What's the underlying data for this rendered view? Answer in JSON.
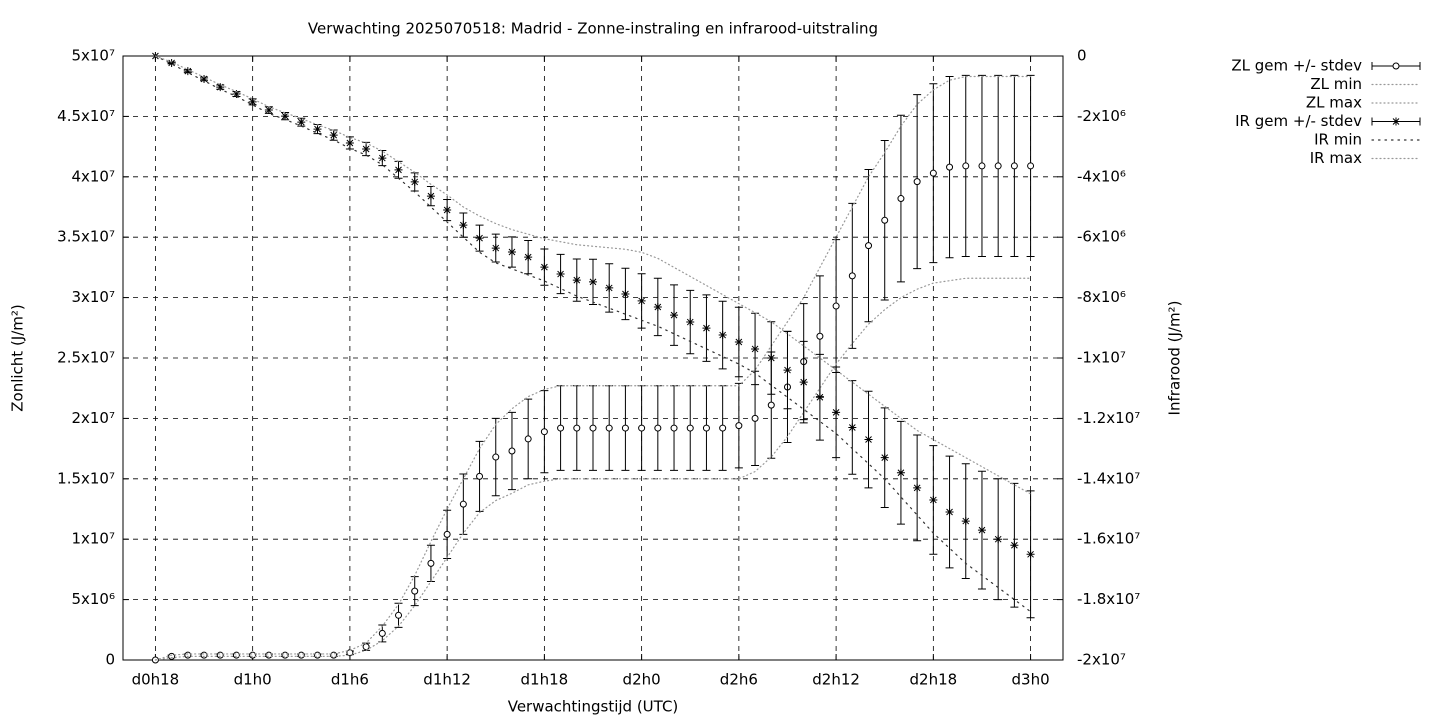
{
  "chart_data": {
    "type": "errorbar",
    "title": "Verwachting 2025070518: Madrid - Zonne-instraling en infrarood-uitstraling",
    "xlabel": "Verwachtingstijd (UTC)",
    "ylabel": "Zonlicht (J/m²)",
    "y2label": "Infrarood (J/m²)",
    "xlim": [
      16,
      74
    ],
    "xticks": [
      {
        "value": 18,
        "label": "d0h18"
      },
      {
        "value": 24,
        "label": "d1h0"
      },
      {
        "value": 30,
        "label": "d1h6"
      },
      {
        "value": 36,
        "label": "d1h12"
      },
      {
        "value": 42,
        "label": "d1h18"
      },
      {
        "value": 48,
        "label": "d2h0"
      },
      {
        "value": 54,
        "label": "d2h6"
      },
      {
        "value": 60,
        "label": "d2h12"
      },
      {
        "value": 66,
        "label": "d2h18"
      },
      {
        "value": 72,
        "label": "d3h0"
      }
    ],
    "ylim": [
      0,
      50000000
    ],
    "yticks": [
      0,
      {
        "value": 5000000,
        "label": "5x10⁶"
      },
      {
        "value": 10000000,
        "label": "1x10⁷"
      },
      {
        "value": 15000000,
        "label": "1.5x10⁷"
      },
      {
        "value": 20000000,
        "label": "2x10⁷"
      },
      {
        "value": 25000000,
        "label": "2.5x10⁷"
      },
      {
        "value": 30000000,
        "label": "3x10⁷"
      },
      {
        "value": 35000000,
        "label": "3.5x10⁷"
      },
      {
        "value": 40000000,
        "label": "4x10⁷"
      },
      {
        "value": 45000000,
        "label": "4.5x10⁷"
      },
      {
        "value": 50000000,
        "label": "5x10⁷"
      }
    ],
    "y2lim": [
      -20000000,
      0
    ],
    "y2ticks": [
      {
        "value": -20000000,
        "label": "-2x10⁷"
      },
      {
        "value": -18000000,
        "label": "-1.8x10⁷"
      },
      {
        "value": -16000000,
        "label": "-1.6x10⁷"
      },
      {
        "value": -14000000,
        "label": "-1.4x10⁷"
      },
      {
        "value": -12000000,
        "label": "-1.2x10⁷"
      },
      {
        "value": -10000000,
        "label": "-1x10⁷"
      },
      {
        "value": -8000000,
        "label": "-8x10⁶"
      },
      {
        "value": -6000000,
        "label": "-6x10⁶"
      },
      {
        "value": -4000000,
        "label": "-4x10⁶"
      },
      {
        "value": -2000000,
        "label": "-2x10⁶"
      },
      0
    ],
    "grid": true,
    "legend": "outside-top-right",
    "x": [
      18,
      19,
      20,
      21,
      22,
      23,
      24,
      25,
      26,
      27,
      28,
      29,
      30,
      31,
      32,
      33,
      34,
      35,
      36,
      37,
      38,
      39,
      40,
      41,
      42,
      43,
      44,
      45,
      46,
      47,
      48,
      49,
      50,
      51,
      52,
      53,
      54,
      55,
      56,
      57,
      58,
      59,
      60,
      61,
      62,
      63,
      64,
      65,
      66,
      67,
      68,
      69,
      70,
      71,
      72
    ],
    "series": [
      {
        "name": "ZL gem +/- stdev",
        "style": "errorbars",
        "marker": "circle",
        "color": "#000000",
        "values": [
          0,
          300000,
          400000,
          400000,
          400000,
          400000,
          400000,
          400000,
          400000,
          400000,
          400000,
          400000,
          600000,
          1100000,
          2200000,
          3700000,
          5700000,
          8000000,
          10400000,
          12900000,
          15200000,
          16800000,
          17300000,
          18300000,
          18900000,
          19200000,
          19200000,
          19200000,
          19200000,
          19200000,
          19200000,
          19200000,
          19200000,
          19200000,
          19200000,
          19200000,
          19400000,
          20000000,
          21100000,
          22600000,
          24700000,
          26800000,
          29300000,
          31800000,
          34300000,
          36400000,
          38200000,
          39600000,
          40300000,
          40800000,
          40900000,
          40900000,
          40900000,
          40900000,
          40900000
        ],
        "errors": [
          0,
          100000,
          100000,
          100000,
          100000,
          100000,
          100000,
          100000,
          100000,
          100000,
          100000,
          100000,
          150000,
          300000,
          700000,
          1000000,
          1200000,
          1500000,
          2000000,
          2500000,
          2900000,
          3200000,
          3200000,
          3300000,
          3400000,
          3500000,
          3500000,
          3500000,
          3500000,
          3500000,
          3500000,
          3500000,
          3500000,
          3500000,
          3500000,
          3500000,
          3500000,
          3900000,
          4400000,
          4600000,
          4800000,
          5000000,
          5500000,
          6000000,
          6300000,
          6600000,
          6900000,
          7200000,
          7400000,
          7500000,
          7500000,
          7500000,
          7500000,
          7500000,
          7500000
        ]
      },
      {
        "name": "ZL min",
        "style": "dotted",
        "color": "#999999",
        "values": [
          0,
          200000,
          300000,
          300000,
          300000,
          300000,
          300000,
          300000,
          300000,
          300000,
          300000,
          300000,
          400000,
          800000,
          1600000,
          2800000,
          4500000,
          6500000,
          8500000,
          10500000,
          12200000,
          13200000,
          13800000,
          14500000,
          14800000,
          15000000,
          15000000,
          15000000,
          15000000,
          15000000,
          15000000,
          15000000,
          15000000,
          15000000,
          15000000,
          15000000,
          15000000,
          15600000,
          16800000,
          18500000,
          20500000,
          22500000,
          24500000,
          26200000,
          27800000,
          29000000,
          30000000,
          30700000,
          31200000,
          31400000,
          31600000,
          31600000,
          31600000,
          31600000,
          31600000
        ]
      },
      {
        "name": "ZL max",
        "style": "dotted",
        "color": "#999999",
        "values": [
          0,
          400000,
          500000,
          500000,
          500000,
          500000,
          500000,
          500000,
          500000,
          500000,
          500000,
          500000,
          800000,
          1400000,
          2800000,
          4600000,
          7000000,
          9800000,
          12500000,
          15000000,
          17500000,
          19500000,
          20800000,
          21800000,
          22400000,
          22700000,
          22700000,
          22700000,
          22700000,
          22700000,
          22700000,
          22700000,
          22700000,
          22700000,
          22700000,
          22700000,
          22700000,
          24000000,
          26000000,
          28000000,
          30000000,
          32500000,
          35000000,
          37500000,
          40000000,
          42000000,
          44200000,
          46000000,
          47200000,
          48000000,
          48300000,
          48300000,
          48300000,
          48300000,
          48300000
        ]
      },
      {
        "name": "IR gem +/- stdev",
        "style": "errorbars",
        "marker": "star",
        "color": "#000000",
        "axis": "y2",
        "values": [
          0,
          -230000,
          -500000,
          -760000,
          -1030000,
          -1260000,
          -1520000,
          -1790000,
          -1990000,
          -2190000,
          -2420000,
          -2620000,
          -2880000,
          -3080000,
          -3380000,
          -3770000,
          -4170000,
          -4640000,
          -5100000,
          -5600000,
          -6030000,
          -6360000,
          -6490000,
          -6660000,
          -6990000,
          -7220000,
          -7420000,
          -7480000,
          -7680000,
          -7880000,
          -8110000,
          -8310000,
          -8580000,
          -8810000,
          -9010000,
          -9240000,
          -9470000,
          -9700000,
          -10000000,
          -10400000,
          -10800000,
          -11300000,
          -11800000,
          -12300000,
          -12700000,
          -13300000,
          -13800000,
          -14300000,
          -14700000,
          -15100000,
          -15400000,
          -15700000,
          -16000000,
          -16200000,
          -16500000
        ],
        "errors": [
          0,
          30000,
          50000,
          60000,
          70000,
          80000,
          100000,
          110000,
          120000,
          130000,
          150000,
          170000,
          200000,
          220000,
          250000,
          280000,
          300000,
          320000,
          350000,
          400000,
          430000,
          460000,
          500000,
          550000,
          600000,
          650000,
          700000,
          750000,
          800000,
          850000,
          900000,
          950000,
          1000000,
          1050000,
          1100000,
          1120000,
          1150000,
          1180000,
          1200000,
          1280000,
          1350000,
          1420000,
          1500000,
          1550000,
          1600000,
          1650000,
          1700000,
          1750000,
          1800000,
          1850000,
          1900000,
          1950000,
          2000000,
          2050000,
          2100000
        ]
      },
      {
        "name": "IR min",
        "style": "dots",
        "color": "#333333",
        "axis": "y2",
        "values": [
          0,
          -260000,
          -550000,
          -820000,
          -1100000,
          -1340000,
          -1620000,
          -1900000,
          -2100000,
          -2320000,
          -2560000,
          -2780000,
          -3060000,
          -3280000,
          -3600000,
          -4050000,
          -4500000,
          -5000000,
          -5500000,
          -6000000,
          -6500000,
          -6850000,
          -7050000,
          -7250000,
          -7450000,
          -7700000,
          -7950000,
          -8150000,
          -8350000,
          -8550000,
          -8750000,
          -8950000,
          -9200000,
          -9450000,
          -9700000,
          -9950000,
          -10200000,
          -10500000,
          -10900000,
          -11300000,
          -11700000,
          -12100000,
          -12500000,
          -13000000,
          -13500000,
          -14000000,
          -14600000,
          -15200000,
          -15800000,
          -16300000,
          -16800000,
          -17200000,
          -17600000,
          -18000000,
          -18400000
        ]
      },
      {
        "name": "IR max",
        "style": "dotted",
        "color": "#999999",
        "axis": "y2",
        "values": [
          0,
          -200000,
          -450000,
          -700000,
          -950000,
          -1180000,
          -1420000,
          -1680000,
          -1880000,
          -2070000,
          -2280000,
          -2460000,
          -2700000,
          -2880000,
          -3150000,
          -3500000,
          -3850000,
          -4250000,
          -4600000,
          -5000000,
          -5300000,
          -5550000,
          -5750000,
          -5900000,
          -6050000,
          -6150000,
          -6250000,
          -6300000,
          -6350000,
          -6400000,
          -6500000,
          -6700000,
          -7000000,
          -7300000,
          -7600000,
          -7900000,
          -8200000,
          -8500000,
          -8800000,
          -9200000,
          -9600000,
          -10000000,
          -10400000,
          -10800000,
          -11200000,
          -11600000,
          -12000000,
          -12400000,
          -12700000,
          -13000000,
          -13300000,
          -13600000,
          -13900000,
          -14200000,
          -14500000
        ]
      }
    ]
  }
}
